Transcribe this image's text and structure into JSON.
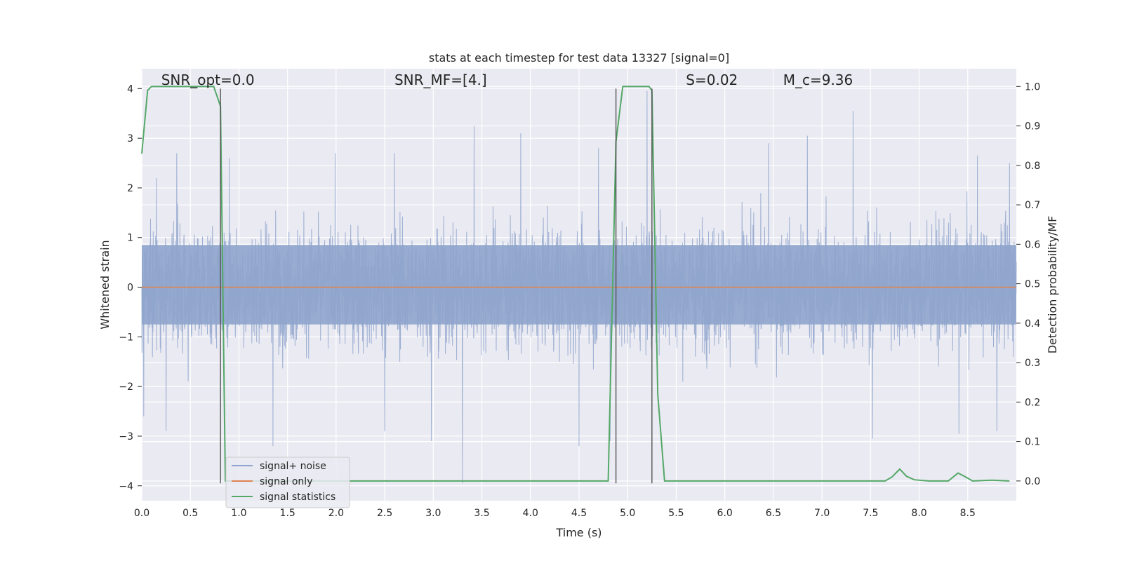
{
  "chart_data": {
    "type": "line",
    "title": "stats at each timestep for test data 13327 [signal=0]",
    "xlabel": "Time (s)",
    "ylabel": "Whitened strain",
    "ylabel_right": "Detection probability/MF",
    "xlim": [
      0,
      9.0
    ],
    "ylim": [
      -4.3,
      4.4
    ],
    "ylim_right": [
      -0.05,
      1.045
    ],
    "x_ticks": [
      "0.0",
      "0.5",
      "1.0",
      "1.5",
      "2.0",
      "2.5",
      "3.0",
      "3.5",
      "4.0",
      "4.5",
      "5.0",
      "5.5",
      "6.0",
      "6.5",
      "7.0",
      "7.5",
      "8.0",
      "8.5"
    ],
    "y_ticks": [
      "−4",
      "−3",
      "−2",
      "−1",
      "0",
      "1",
      "2",
      "3",
      "4"
    ],
    "y_ticks_right": [
      "0.0",
      "0.1",
      "0.2",
      "0.3",
      "0.4",
      "0.5",
      "0.6",
      "0.7",
      "0.8",
      "0.9",
      "1.0"
    ],
    "grid": true,
    "legend_position": "lower-left",
    "annotations": [
      {
        "text": "SNR_opt=0.0",
        "x": 0.2,
        "y": 4.1
      },
      {
        "text": "SNR_MF=[4.]",
        "x": 2.6,
        "y": 4.1
      },
      {
        "text": "S=0.02",
        "x": 5.6,
        "y": 4.1
      },
      {
        "text": "M_c=9.36",
        "x": 6.6,
        "y": 4.1
      }
    ],
    "vlines": [
      {
        "x": 0.81,
        "y": [
          -3.95,
          4.0
        ]
      },
      {
        "x": 4.88,
        "y": [
          -3.95,
          4.0
        ]
      },
      {
        "x": 5.25,
        "y": [
          -3.95,
          4.0
        ]
      }
    ],
    "series": [
      {
        "name": "signal+ noise",
        "color": "#8fa4cc",
        "kind": "noise",
        "band": {
          "core_low": -0.75,
          "core_high": 0.85,
          "typical_low": -1.6,
          "typical_high": 1.6
        },
        "peaks": [
          {
            "x": 0.15,
            "y": 2.2
          },
          {
            "x": 0.36,
            "y": 2.7
          },
          {
            "x": 0.9,
            "y": 2.6
          },
          {
            "x": 1.99,
            "y": 2.7
          },
          {
            "x": 2.6,
            "y": 2.7
          },
          {
            "x": 3.42,
            "y": 3.25
          },
          {
            "x": 3.9,
            "y": 3.1
          },
          {
            "x": 4.7,
            "y": 2.8
          },
          {
            "x": 5.2,
            "y": 3.95
          },
          {
            "x": 6.45,
            "y": 2.9
          },
          {
            "x": 6.85,
            "y": 3.05
          },
          {
            "x": 7.32,
            "y": 3.55
          },
          {
            "x": 8.6,
            "y": 2.65
          },
          {
            "x": 8.93,
            "y": 2.5
          }
        ],
        "troughs": [
          {
            "x": 0.02,
            "y": -2.6
          },
          {
            "x": 0.25,
            "y": -2.9
          },
          {
            "x": 1.35,
            "y": -3.2
          },
          {
            "x": 2.5,
            "y": -2.9
          },
          {
            "x": 2.98,
            "y": -3.1
          },
          {
            "x": 3.3,
            "y": -3.95
          },
          {
            "x": 4.5,
            "y": -3.2
          },
          {
            "x": 4.82,
            "y": -3.1
          },
          {
            "x": 7.52,
            "y": -3.05
          },
          {
            "x": 8.41,
            "y": -2.95
          },
          {
            "x": 8.8,
            "y": -2.9
          }
        ]
      },
      {
        "name": "signal only",
        "color": "#dd8452",
        "axis": "left",
        "x": [
          0.0,
          9.0
        ],
        "y": [
          0.0,
          0.0
        ]
      },
      {
        "name": "signal statistics",
        "color": "#55a868",
        "axis": "right",
        "x": [
          0.0,
          0.06,
          0.1,
          0.2,
          0.3,
          0.4,
          0.5,
          0.6,
          0.7,
          0.74,
          0.81,
          0.86,
          1.0,
          2.0,
          3.0,
          4.0,
          4.5,
          4.8,
          4.88,
          4.95,
          5.0,
          5.1,
          5.18,
          5.22,
          5.25,
          5.31,
          5.38,
          6.0,
          7.0,
          7.65,
          7.72,
          7.8,
          7.87,
          7.95,
          8.1,
          8.3,
          8.4,
          8.48,
          8.55,
          8.75,
          8.93
        ],
        "y": [
          0.83,
          0.99,
          1.0,
          1.0,
          1.0,
          1.0,
          1.0,
          1.0,
          1.0,
          1.0,
          0.95,
          0.0,
          0.0,
          0.0,
          0.0,
          0.0,
          0.0,
          0.0,
          0.86,
          1.0,
          1.0,
          1.0,
          1.0,
          1.0,
          0.99,
          0.22,
          0.0,
          0.0,
          0.0,
          0.0,
          0.01,
          0.03,
          0.012,
          0.003,
          0.0,
          0.0,
          0.02,
          0.01,
          0.0,
          0.002,
          0.0
        ]
      }
    ]
  }
}
